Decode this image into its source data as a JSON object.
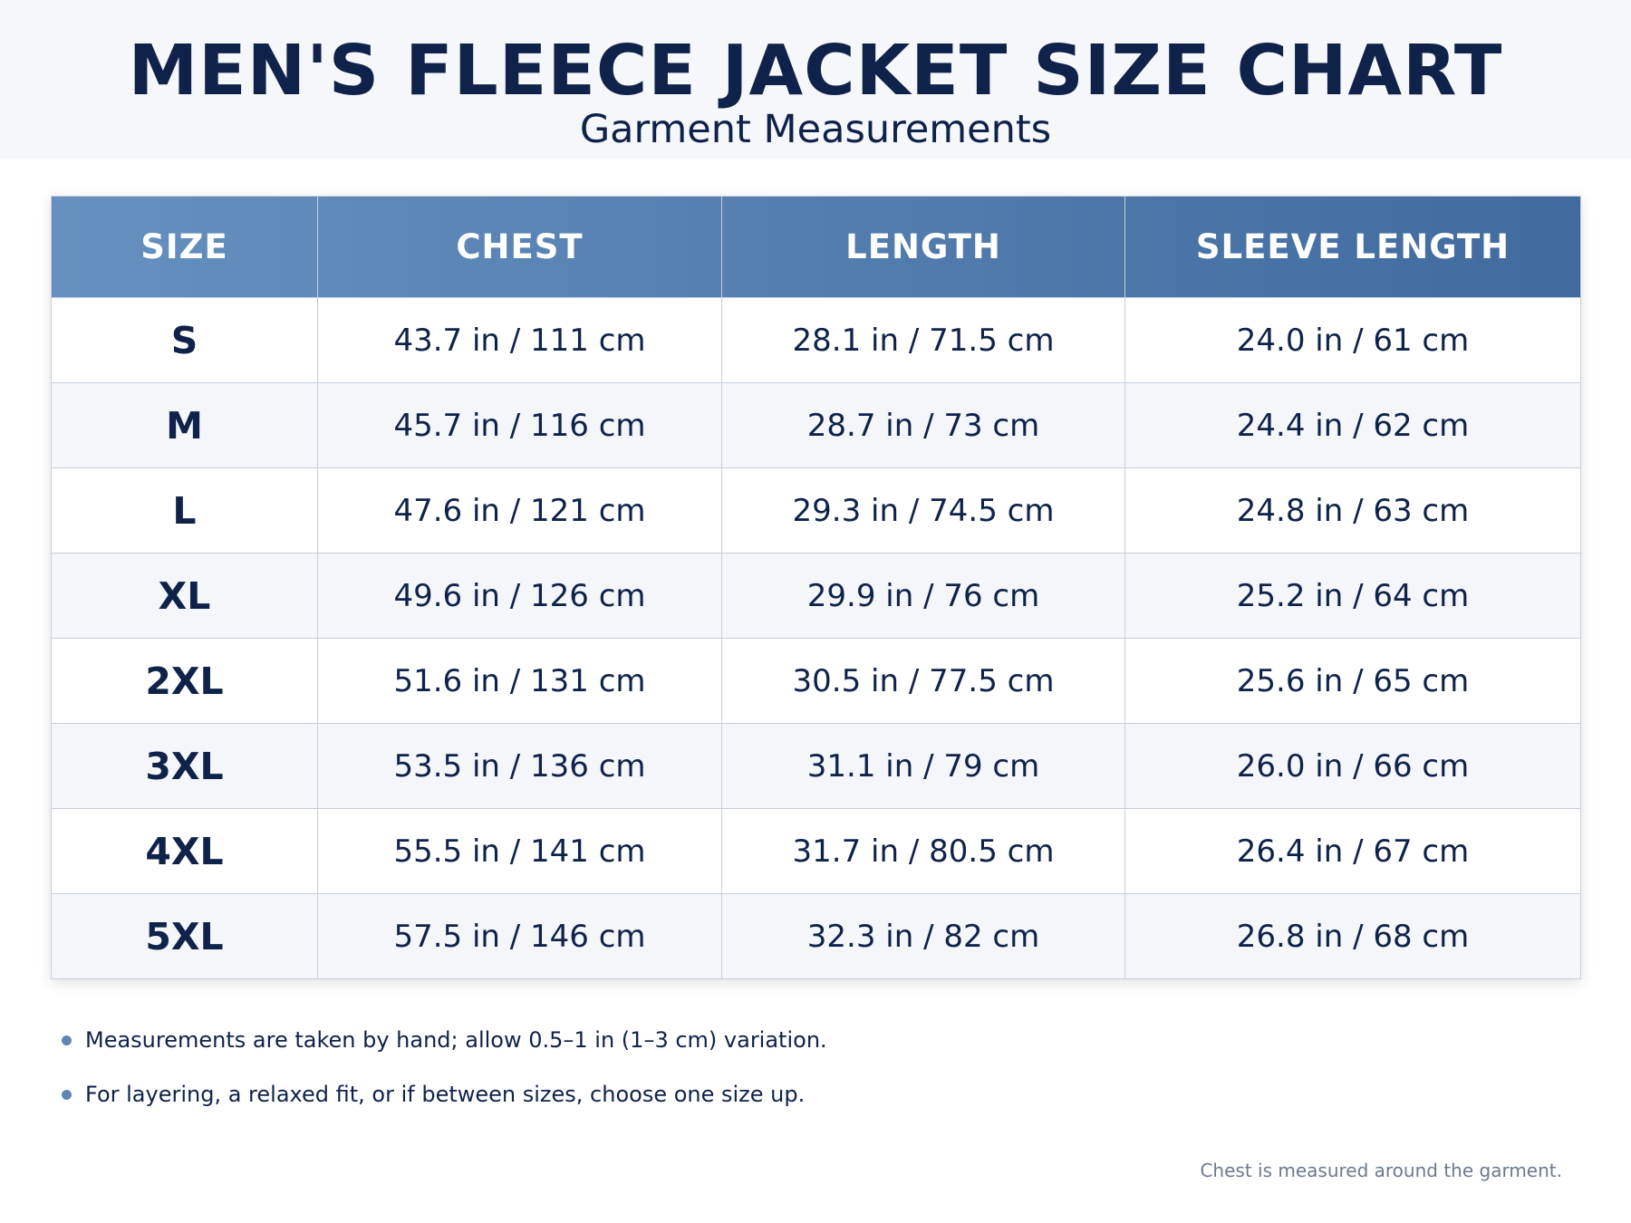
{
  "header": {
    "title": "MEN'S FLEECE JACKET SIZE CHART",
    "subtitle": "Garment Measurements"
  },
  "table": {
    "columns": [
      "SIZE",
      "CHEST",
      "LENGTH",
      "SLEEVE LENGTH"
    ],
    "rows": [
      [
        "S",
        "43.7 in / 111 cm",
        "28.1 in / 71.5 cm",
        "24.0 in / 61 cm"
      ],
      [
        "M",
        "45.7 in / 116 cm",
        "28.7 in / 73 cm",
        "24.4 in / 62 cm"
      ],
      [
        "L",
        "47.6 in / 121 cm",
        "29.3 in / 74.5 cm",
        "24.8 in / 63 cm"
      ],
      [
        "XL",
        "49.6 in / 126 cm",
        "29.9 in / 76 cm",
        "25.2 in / 64 cm"
      ],
      [
        "2XL",
        "51.6 in / 131 cm",
        "30.5 in / 77.5 cm",
        "25.6 in / 65 cm"
      ],
      [
        "3XL",
        "53.5 in / 136 cm",
        "31.1 in / 79 cm",
        "26.0 in / 66 cm"
      ],
      [
        "4XL",
        "55.5 in / 141 cm",
        "31.7 in / 80.5 cm",
        "26.4 in / 67 cm"
      ],
      [
        "5XL",
        "57.5 in / 146 cm",
        "32.3 in / 82 cm",
        "26.8 in / 68 cm"
      ]
    ]
  },
  "notes": [
    "Measurements are taken by hand; allow 0.5–1 in (1–3 cm) variation.",
    "For layering, a relaxed fit, or if between sizes, choose one size up."
  ],
  "footnote": "Chest is measured around the garment."
}
